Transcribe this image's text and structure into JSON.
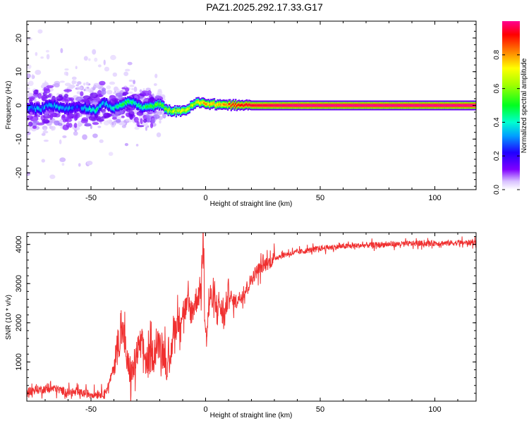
{
  "title": "PAZ1.2025.292.17.33.G17",
  "chart_data": [
    {
      "type": "heatmap",
      "xlabel": "Height of straight line (km)",
      "ylabel": "Frequency (Hz)",
      "xlim": [
        -78,
        118
      ],
      "ylim": [
        -25,
        25
      ],
      "xticks": [
        -50,
        0,
        50,
        100
      ],
      "yticks": [
        -20,
        -10,
        0,
        10,
        20
      ],
      "colorbar": {
        "label": "Normalized spectral amplitude",
        "range": [
          0,
          1
        ],
        "ticks": [
          0.0,
          0.2,
          0.4,
          0.6,
          0.8
        ],
        "colormap": [
          "#e8d8ff",
          "#7f00ff",
          "#0000ff",
          "#00c8ff",
          "#00ff00",
          "#ffff00",
          "#ff8000",
          "#ff0000",
          "#ff00a0"
        ]
      },
      "ridge": {
        "x": [
          -76,
          -72,
          -68,
          -64,
          -60,
          -56,
          -52,
          -48,
          -44,
          -40,
          -36,
          -32,
          -28,
          -24,
          -20,
          -16,
          -12,
          -8,
          -4,
          0,
          4,
          8,
          12,
          20,
          40,
          60,
          80,
          100,
          118
        ],
        "freq": [
          -0.8,
          -1.2,
          0.4,
          -0.5,
          -1.0,
          -0.3,
          -0.8,
          -1.5,
          0.8,
          -1.0,
          0.5,
          1.2,
          -0.6,
          -0.4,
          0.3,
          -1.5,
          -1.8,
          -1.2,
          0.8,
          0.6,
          0.3,
          0.2,
          0.1,
          0.0,
          0.0,
          0.0,
          0.0,
          0.0,
          0.0
        ],
        "amplitude": [
          0.35,
          0.4,
          0.38,
          0.42,
          0.4,
          0.3,
          0.45,
          0.5,
          0.4,
          0.45,
          0.55,
          0.5,
          0.48,
          0.6,
          0.62,
          0.7,
          0.75,
          0.72,
          0.7,
          0.85,
          0.8,
          0.85,
          0.9,
          0.95,
          1.0,
          1.0,
          1.0,
          1.0,
          1.0
        ]
      }
    },
    {
      "type": "line",
      "xlabel": "Height of straight line (km)",
      "ylabel": "SNR (10 * v/v)",
      "xlim": [
        -78,
        118
      ],
      "ylim": [
        0,
        4300
      ],
      "xticks": [
        -50,
        0,
        50,
        100
      ],
      "yticks": [
        1000,
        2000,
        3000,
        4000
      ],
      "color": "#f03030",
      "series": [
        {
          "name": "SNR",
          "x": [
            -78,
            -72,
            -66,
            -60,
            -54,
            -48,
            -44,
            -42,
            -40,
            -38,
            -36,
            -34,
            -32,
            -30,
            -28,
            -26,
            -24,
            -22,
            -20,
            -18,
            -16,
            -14,
            -12,
            -10,
            -8,
            -6,
            -4,
            -2,
            -1,
            0,
            2,
            4,
            6,
            8,
            10,
            12,
            14,
            16,
            18,
            20,
            22,
            24,
            26,
            28,
            30,
            35,
            40,
            45,
            50,
            60,
            70,
            80,
            90,
            100,
            110,
            118
          ],
          "y": [
            250,
            300,
            320,
            230,
            200,
            180,
            200,
            450,
            900,
            1500,
            1800,
            900,
            700,
            1200,
            1500,
            1000,
            1100,
            1300,
            1500,
            1200,
            700,
            1800,
            2000,
            2300,
            2400,
            2300,
            2600,
            2900,
            4000,
            1500,
            2700,
            2400,
            2500,
            2100,
            2800,
            2500,
            2600,
            2700,
            2900,
            3100,
            3300,
            3400,
            3500,
            3550,
            3650,
            3750,
            3800,
            3850,
            3900,
            3950,
            3980,
            4000,
            4020,
            4030,
            4040,
            4050
          ]
        }
      ]
    }
  ]
}
